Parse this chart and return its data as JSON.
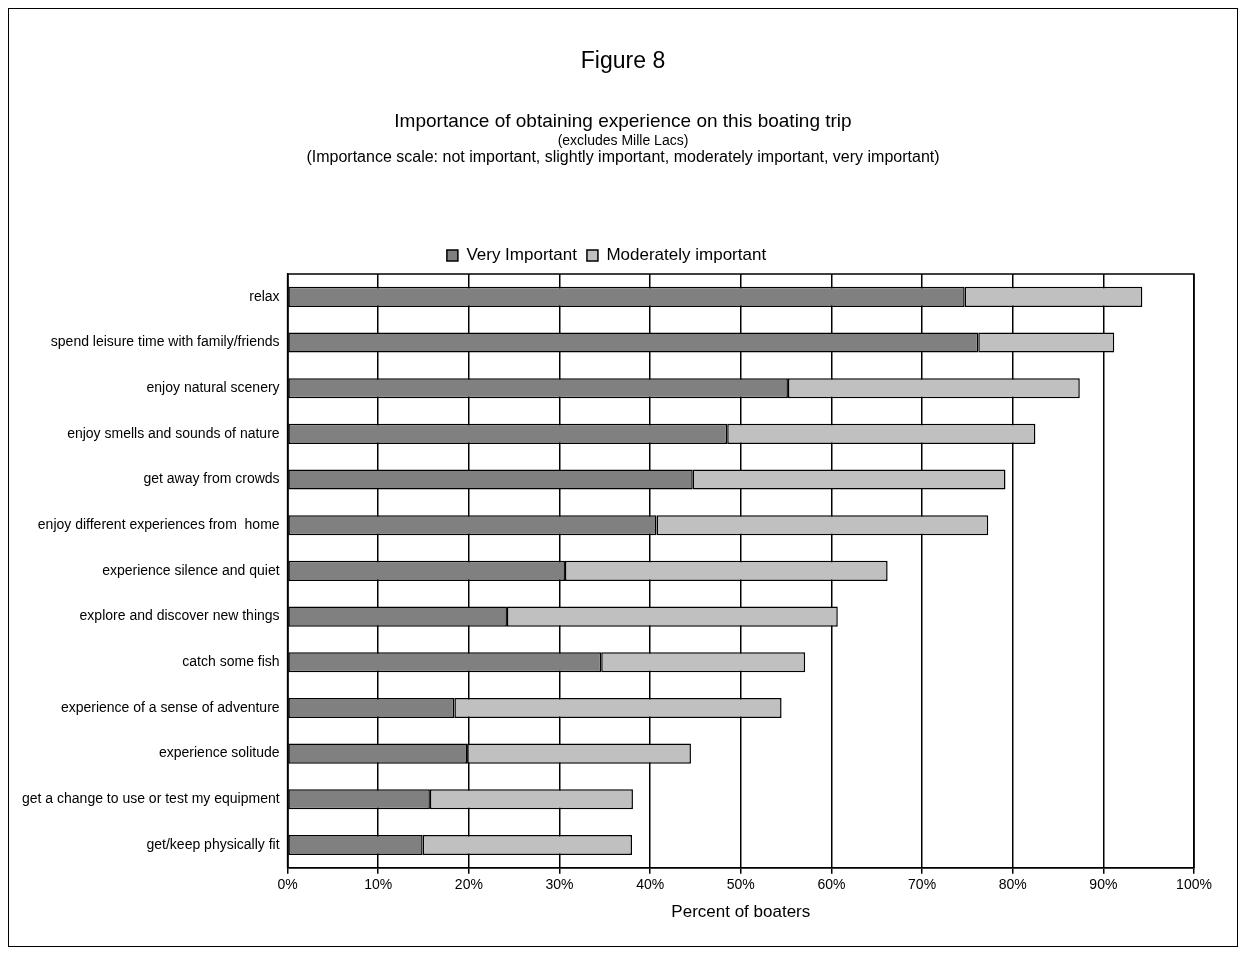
{
  "chart_data": {
    "type": "bar",
    "orientation": "horizontal",
    "stacked": true,
    "title": "Figure 8",
    "subtitle": "Importance of obtaining experience on this boating trip",
    "annotations": [
      "(excludes Mille Lacs)",
      "(Importance scale: not important, slightly important, moderately important, very important)"
    ],
    "categories": [
      "relax",
      "spend leisure time with family/friends",
      "enjoy natural scenery",
      "enjoy smells and sounds of nature",
      "get away from crowds",
      "enjoy different experiences from  home",
      "experience silence and quiet",
      "explore and discover new things",
      "catch some fish",
      "experience of a sense of adventure",
      "experience solitude",
      "get a change to use or test my equipment",
      "get/keep physically fit"
    ],
    "series": [
      {
        "name": "Very Important",
        "color": "#808080",
        "values": [
          74.7,
          76.2,
          55.2,
          48.5,
          44.7,
          40.7,
          30.6,
          24.2,
          34.6,
          18.4,
          19.8,
          15.7,
          14.9
        ]
      },
      {
        "name": "Moderately important",
        "color": "#c0c0c0",
        "values": [
          19.6,
          15.0,
          32.2,
          34.0,
          34.5,
          36.6,
          35.6,
          36.5,
          22.5,
          36.1,
          24.7,
          22.4,
          23.1
        ]
      }
    ],
    "xlabel": "Percent of boaters",
    "xlim": [
      0,
      100
    ],
    "xticks": [
      {
        "value": 0,
        "label": "0%"
      },
      {
        "value": 10,
        "label": "10%"
      },
      {
        "value": 20,
        "label": "20%"
      },
      {
        "value": 30,
        "label": "30%"
      },
      {
        "value": 40,
        "label": "40%"
      },
      {
        "value": 50,
        "label": "50%"
      },
      {
        "value": 60,
        "label": "60%"
      },
      {
        "value": 70,
        "label": "70%"
      },
      {
        "value": 80,
        "label": "80%"
      },
      {
        "value": 90,
        "label": "90%"
      },
      {
        "value": 100,
        "label": "100%"
      }
    ],
    "grid": "x",
    "legend": "top"
  }
}
